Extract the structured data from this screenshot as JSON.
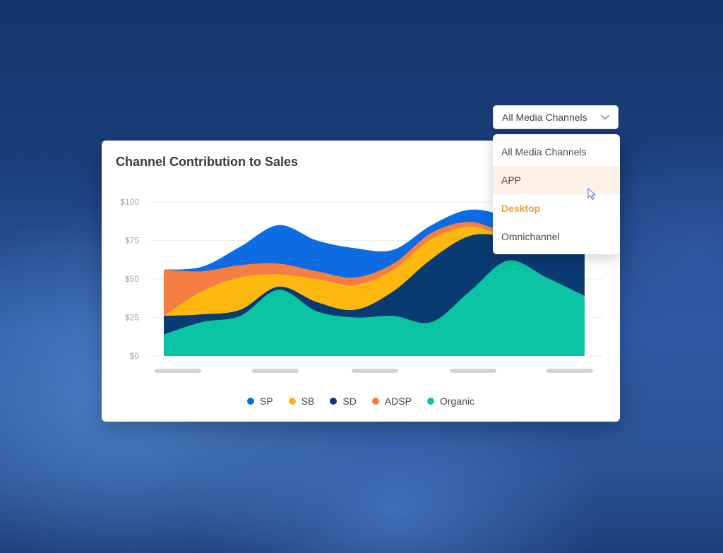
{
  "card": {
    "title": "Channel Contribution to Sales"
  },
  "dropdown": {
    "selected": "All Media Channels",
    "options": [
      "All Media Channels",
      "APP",
      "Desktop",
      "Omnichannel"
    ],
    "hovered_index": 1,
    "active_index": 2
  },
  "chart_data": {
    "type": "area",
    "stacked": true,
    "title": "Channel Contribution to Sales",
    "xlabel": "",
    "ylabel": "",
    "x_tick_labels": [
      "",
      "",
      "",
      "",
      ""
    ],
    "y_tick_labels": [
      "$100",
      "$75",
      "$50",
      "$25",
      "$0"
    ],
    "ylim": [
      0,
      100
    ],
    "grid": true,
    "legend_position": "bottom",
    "x": [
      0,
      1,
      2,
      3,
      4,
      5,
      6,
      7,
      8,
      9,
      10,
      11
    ],
    "series": [
      {
        "name": "Organic",
        "color": "#0bc4a3",
        "values": [
          14,
          22,
          26,
          43,
          29,
          25,
          26,
          22,
          42,
          62,
          51,
          39
        ]
      },
      {
        "name": "SD",
        "color": "#0a3a72",
        "values": [
          12,
          5,
          4,
          2,
          6,
          5,
          16,
          41,
          36,
          16,
          27,
          48
        ]
      },
      {
        "name": "SB",
        "color": "#fdb80f",
        "values": [
          0,
          15,
          21,
          8,
          15,
          16,
          14,
          13,
          6,
          0,
          0,
          0
        ]
      },
      {
        "name": "ADSP",
        "color": "#f47e44",
        "values": [
          30,
          13,
          8,
          7,
          5,
          5,
          4,
          4,
          3,
          2,
          1,
          0
        ]
      },
      {
        "name": "SP",
        "color": "#0e6ce3",
        "values": [
          0,
          3,
          12,
          25,
          20,
          19,
          9,
          5,
          8,
          10,
          0,
          0
        ]
      }
    ],
    "legend_order": [
      "SP",
      "SB",
      "SD",
      "ADSP",
      "Organic"
    ]
  }
}
